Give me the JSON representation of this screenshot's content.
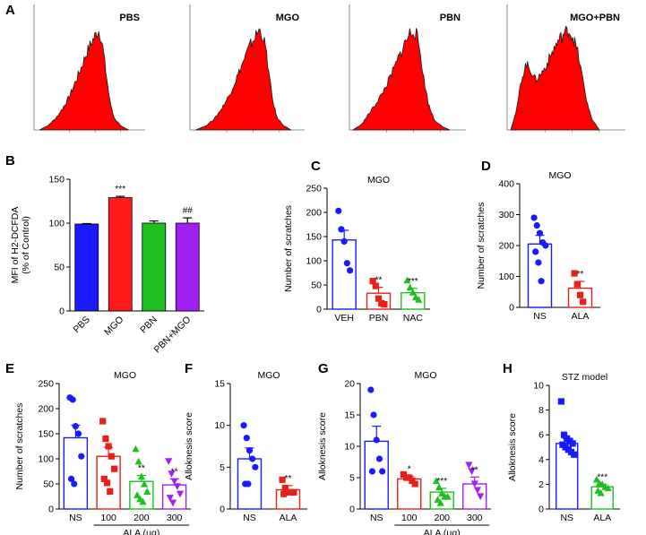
{
  "chart_data": [
    {
      "panel": "A",
      "type": "area",
      "title": "PBS",
      "shape": [
        [
          0.05,
          0
        ],
        [
          0.12,
          0.04
        ],
        [
          0.2,
          0.12
        ],
        [
          0.26,
          0.22
        ],
        [
          0.32,
          0.34
        ],
        [
          0.38,
          0.5
        ],
        [
          0.43,
          0.64
        ],
        [
          0.47,
          0.76
        ],
        [
          0.51,
          0.86
        ],
        [
          0.55,
          0.94
        ],
        [
          0.58,
          1.0
        ],
        [
          0.6,
          0.95
        ],
        [
          0.62,
          0.82
        ],
        [
          0.65,
          0.55
        ],
        [
          0.68,
          0.3
        ],
        [
          0.72,
          0.12
        ],
        [
          0.78,
          0.04
        ],
        [
          0.85,
          0
        ]
      ]
    },
    {
      "panel": "A",
      "type": "area",
      "title": "MGO",
      "shape": [
        [
          0.05,
          0
        ],
        [
          0.14,
          0.04
        ],
        [
          0.22,
          0.12
        ],
        [
          0.28,
          0.22
        ],
        [
          0.34,
          0.34
        ],
        [
          0.4,
          0.5
        ],
        [
          0.45,
          0.64
        ],
        [
          0.5,
          0.78
        ],
        [
          0.54,
          0.88
        ],
        [
          0.58,
          0.95
        ],
        [
          0.6,
          1.0
        ],
        [
          0.63,
          0.96
        ],
        [
          0.66,
          0.82
        ],
        [
          0.69,
          0.55
        ],
        [
          0.72,
          0.3
        ],
        [
          0.76,
          0.12
        ],
        [
          0.82,
          0.04
        ],
        [
          0.88,
          0
        ]
      ]
    },
    {
      "panel": "A",
      "type": "area",
      "title": "PBN",
      "shape": [
        [
          0.03,
          0
        ],
        [
          0.1,
          0.05
        ],
        [
          0.16,
          0.15
        ],
        [
          0.22,
          0.25
        ],
        [
          0.28,
          0.36
        ],
        [
          0.34,
          0.5
        ],
        [
          0.4,
          0.66
        ],
        [
          0.45,
          0.8
        ],
        [
          0.49,
          0.9
        ],
        [
          0.52,
          0.97
        ],
        [
          0.55,
          1.0
        ],
        [
          0.58,
          0.94
        ],
        [
          0.61,
          0.76
        ],
        [
          0.64,
          0.5
        ],
        [
          0.68,
          0.25
        ],
        [
          0.73,
          0.1
        ],
        [
          0.8,
          0.03
        ],
        [
          0.86,
          0
        ]
      ]
    },
    {
      "panel": "A",
      "type": "area",
      "title": "MGO+PBN",
      "shape": [
        [
          0.03,
          0
        ],
        [
          0.08,
          0.2
        ],
        [
          0.12,
          0.5
        ],
        [
          0.16,
          0.66
        ],
        [
          0.2,
          0.6
        ],
        [
          0.24,
          0.5
        ],
        [
          0.28,
          0.55
        ],
        [
          0.32,
          0.62
        ],
        [
          0.36,
          0.72
        ],
        [
          0.4,
          0.82
        ],
        [
          0.44,
          0.9
        ],
        [
          0.48,
          0.96
        ],
        [
          0.52,
          1.0
        ],
        [
          0.56,
          0.92
        ],
        [
          0.6,
          0.76
        ],
        [
          0.64,
          0.5
        ],
        [
          0.68,
          0.25
        ],
        [
          0.72,
          0.1
        ],
        [
          0.78,
          0
        ]
      ]
    },
    {
      "panel": "B",
      "type": "bar",
      "title": "",
      "ylabel": "MFI of H2-DCFDA\n(% of Control)",
      "ylim": [
        0,
        150
      ],
      "yticks": [
        0,
        50,
        100,
        150
      ],
      "categories": [
        "PBS",
        "MGO",
        "PBN",
        "PBN+MGO"
      ],
      "values": [
        99,
        129,
        100,
        100
      ],
      "errors": [
        0.5,
        1.5,
        2.5,
        6
      ],
      "colors": [
        "#1a1aff",
        "#ff1a1a",
        "#1fbf1f",
        "#a020f0"
      ],
      "labels": [
        "",
        "***",
        "",
        "##"
      ]
    },
    {
      "panel": "C",
      "type": "bar",
      "title": "MGO",
      "ylabel": "Number of scratches",
      "ylim": [
        0,
        250
      ],
      "yticks": [
        0,
        50,
        100,
        150,
        200,
        250
      ],
      "categories": [
        "VEH",
        "PBN",
        "NAC"
      ],
      "values": [
        143,
        33,
        34
      ],
      "errors": [
        20,
        12,
        9
      ],
      "colors": [
        "#1a1aff",
        "#e8201a",
        "#1fbf1f"
      ],
      "marker": [
        "circle",
        "square",
        "triangle"
      ],
      "labels": [
        "",
        "**",
        "***"
      ],
      "points": [
        [
          203,
          165,
          140,
          95,
          80
        ],
        [
          58,
          48,
          22,
          12,
          10
        ],
        [
          60,
          45,
          35,
          25,
          20
        ]
      ]
    },
    {
      "panel": "D",
      "type": "bar",
      "title": "MGO",
      "ylabel": "Number of scratches",
      "ylim": [
        0,
        400
      ],
      "yticks": [
        0,
        100,
        200,
        300,
        400
      ],
      "categories": [
        "NS",
        "ALA"
      ],
      "values": [
        205,
        62
      ],
      "errors": [
        28,
        22
      ],
      "colors": [
        "#1a1aff",
        "#e8201a"
      ],
      "marker": [
        "circle",
        "square"
      ],
      "labels": [
        "",
        "**"
      ],
      "points": [
        [
          290,
          265,
          240,
          210,
          200,
          180,
          145,
          85
        ],
        [
          110,
          75,
          40,
          18
        ]
      ]
    },
    {
      "panel": "E",
      "type": "bar",
      "title": "MGO",
      "ylabel": "Number of scratches",
      "ylim": [
        0,
        250
      ],
      "yticks": [
        0,
        50,
        100,
        150,
        200,
        250
      ],
      "categories": [
        "NS",
        "100",
        "200",
        "300"
      ],
      "values": [
        142,
        105,
        55,
        48
      ],
      "errors": [
        25,
        18,
        12,
        12
      ],
      "colors": [
        "#1a1aff",
        "#e8201a",
        "#1fbf1f",
        "#a020f0"
      ],
      "marker": [
        "circle",
        "square",
        "triangle",
        "triangle-down"
      ],
      "labels": [
        "",
        "",
        "**",
        "**"
      ],
      "points": [
        [
          222,
          218,
          165,
          150,
          105,
          60,
          50
        ],
        [
          175,
          140,
          125,
          105,
          80,
          60,
          52,
          35
        ],
        [
          120,
          95,
          65,
          50,
          35,
          28,
          20,
          15
        ],
        [
          95,
          70,
          55,
          45,
          30,
          22,
          12
        ]
      ],
      "xlabel": "ALA (μg)",
      "xgroup": [
        1,
        3
      ]
    },
    {
      "panel": "F",
      "type": "bar",
      "title": "MGO",
      "ylabel": "Alloknesis score",
      "ylim": [
        0,
        15
      ],
      "yticks": [
        0,
        5,
        10,
        15
      ],
      "categories": [
        "NS",
        "ALA"
      ],
      "values": [
        6,
        2.3
      ],
      "errors": [
        1.3,
        0.5
      ],
      "colors": [
        "#1a1aff",
        "#e8201a"
      ],
      "marker": [
        "circle",
        "square"
      ],
      "labels": [
        "",
        "**"
      ],
      "points": [
        [
          10,
          8.5,
          7,
          6,
          5,
          3,
          3
        ],
        [
          3.5,
          2.5,
          2,
          2,
          2,
          1.8
        ]
      ]
    },
    {
      "panel": "G",
      "type": "bar",
      "title": "MGO",
      "ylabel": "Alloknesis score",
      "ylim": [
        0,
        20
      ],
      "yticks": [
        0,
        5,
        10,
        15,
        20
      ],
      "categories": [
        "NS",
        "100",
        "200",
        "300"
      ],
      "values": [
        10.8,
        4.8,
        2.7,
        4
      ],
      "errors": [
        2.4,
        0.4,
        0.6,
        1.1
      ],
      "colors": [
        "#1a1aff",
        "#e8201a",
        "#1fbf1f",
        "#a020f0"
      ],
      "marker": [
        "circle",
        "square",
        "triangle",
        "triangle-down"
      ],
      "labels": [
        "",
        "*",
        "***",
        "**"
      ],
      "points": [
        [
          19,
          15,
          11,
          8,
          6,
          6
        ],
        [
          5.5,
          5,
          5,
          4.5,
          4
        ],
        [
          4.5,
          3.5,
          2.5,
          2,
          2,
          1.5,
          1
        ],
        [
          7,
          6,
          4,
          3,
          2
        ]
      ],
      "xlabel": "ALA (μg)",
      "xgroup": [
        1,
        3
      ]
    },
    {
      "panel": "H",
      "type": "bar",
      "title": "STZ model",
      "ylabel": "Alloknesis score",
      "ylim": [
        0,
        10
      ],
      "yticks": [
        0,
        2,
        4,
        6,
        8,
        10
      ],
      "categories": [
        "NS",
        "ALA"
      ],
      "values": [
        5.3,
        1.8
      ],
      "errors": [
        0.4,
        0.2
      ],
      "colors": [
        "#1a1aff",
        "#1fbf1f"
      ],
      "marker": [
        "square",
        "triangle"
      ],
      "labels": [
        "",
        "***"
      ],
      "points": [
        [
          8.7,
          6,
          5.7,
          5.5,
          5.3,
          5.2,
          5,
          4.8,
          4.6,
          4.4
        ],
        [
          2.4,
          2.1,
          2,
          1.8,
          1.7,
          1.5,
          1.3
        ]
      ]
    }
  ]
}
